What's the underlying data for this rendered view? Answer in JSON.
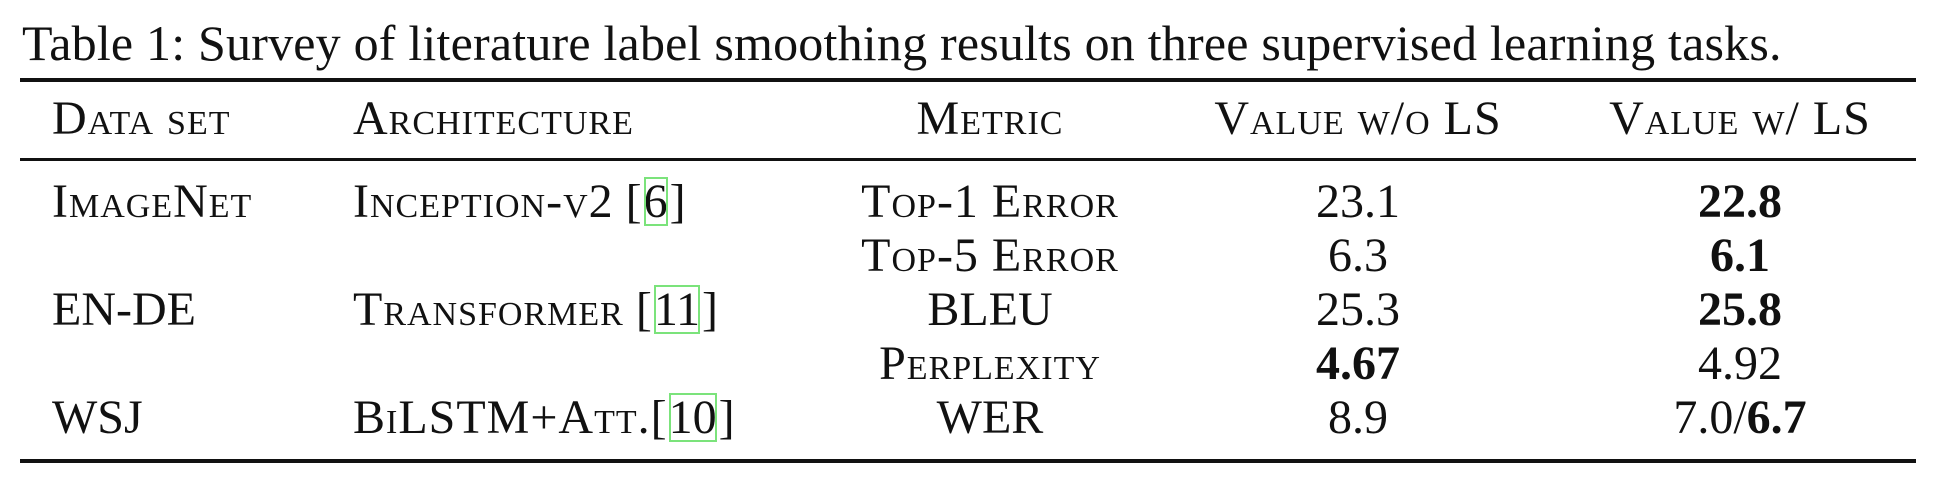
{
  "caption": "Table 1: Survey of literature label smoothing results on three supervised learning tasks.",
  "headers": {
    "dataset": "Data set",
    "architecture": "Architecture",
    "metric": "Metric",
    "value_without": "Value w/o LS",
    "value_with": "Value w/ LS"
  },
  "rows": [
    {
      "dataset": "ImageNet",
      "arch_name": "Inception-v2",
      "arch_ref": "6",
      "metric": "Top-1 Error",
      "value_without": "23.1",
      "value_with": "22.8",
      "best": "with"
    },
    {
      "dataset": "",
      "arch_name": "",
      "arch_ref": "",
      "metric": "Top-5 Error",
      "value_without": "6.3",
      "value_with": "6.1",
      "best": "with"
    },
    {
      "dataset": "EN-DE",
      "arch_name": "Transformer",
      "arch_ref": "11",
      "metric": "BLEU",
      "value_without": "25.3",
      "value_with": "25.8",
      "best": "with"
    },
    {
      "dataset": "",
      "arch_name": "",
      "arch_ref": "",
      "metric": "Perplexity",
      "value_without": "4.67",
      "value_with": "4.92",
      "best": "without"
    },
    {
      "dataset": "WSJ",
      "arch_name": "BiLSTM+Att.",
      "arch_ref": "10",
      "metric": "WER",
      "value_without": "8.9",
      "value_with_prefix": "7.0/",
      "value_with": "6.7",
      "best": "with"
    }
  ]
}
